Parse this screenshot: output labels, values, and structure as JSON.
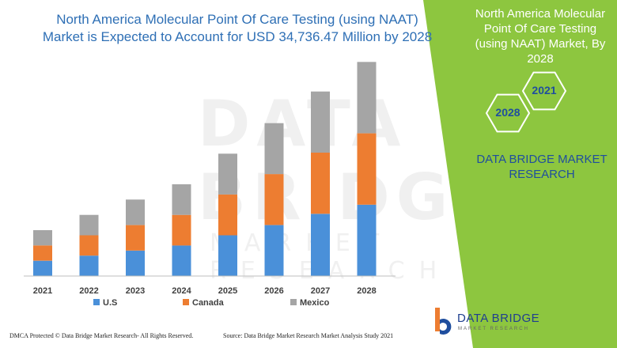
{
  "title": {
    "line1": "North America Molecular Point Of Care Testing (using NAAT)",
    "line2": "Market is Expected to Account for USD 34,736.47 Million by 2028"
  },
  "side_panel": {
    "title": "North America Molecular Point Of Care Testing (using NAAT) Market, By 2028",
    "hex_left": "2028",
    "hex_right": "2021",
    "brand": "DATA BRIDGE MARKET RESEARCH",
    "panel_color": "#8dc63f"
  },
  "watermark": {
    "text": "DATA BRIDGE",
    "sub": "MARKET RESEARCH"
  },
  "footer": {
    "left": "DMCA Protected © Data Bridge Market Research- All Rights Reserved.",
    "right": "Source: Data Bridge Market Research Market Analysis Study 2021"
  },
  "logo": {
    "name": "DATA BRIDGE",
    "sub": "MARKET RESEARCH"
  },
  "chart_data": {
    "type": "bar",
    "stacked": true,
    "categories": [
      "2021",
      "2022",
      "2023",
      "2024",
      "2025",
      "2026",
      "2027",
      "2028"
    ],
    "series": [
      {
        "name": "U.S",
        "color": "#4a90d9",
        "values": [
          3.0,
          4.0,
          5.0,
          6.0,
          8.0,
          10.0,
          12.2,
          14.0
        ]
      },
      {
        "name": "Canada",
        "color": "#ed7d31",
        "values": [
          3.0,
          4.0,
          5.0,
          6.0,
          8.0,
          10.0,
          12.0,
          14.0
        ]
      },
      {
        "name": "Mexico",
        "color": "#a5a5a5",
        "values": [
          3.0,
          4.0,
          5.0,
          6.0,
          8.0,
          10.0,
          12.0,
          14.0
        ]
      }
    ],
    "ymax": 45,
    "legend_position": "bottom",
    "grid": false
  }
}
